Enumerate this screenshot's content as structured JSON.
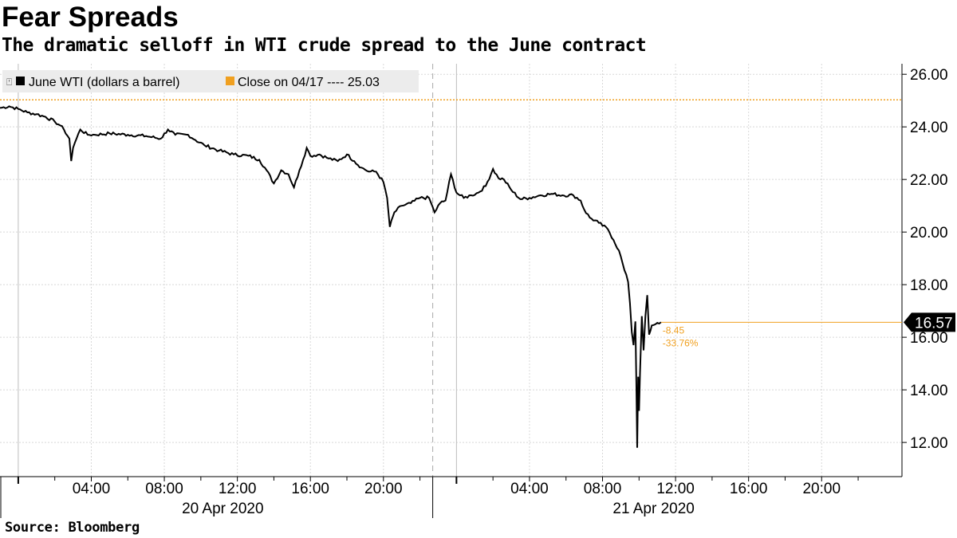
{
  "chart_data": {
    "type": "line",
    "title": "Fear Spreads",
    "subtitle": "The dramatic selloff in WTI crude spread to the June contract",
    "source": "Source: Bloomberg",
    "legend_position": "top-left",
    "grid": true,
    "colors": {
      "series": "#000000",
      "reference": "#f0a020",
      "last_badge": "#000000",
      "grid": "#d8d8d8"
    },
    "legend": {
      "series_label": "June WTI (dollars a barrel)",
      "reference_label": "Close on 04/17 ---- 25.03"
    },
    "ylim": [
      10.7,
      26.4
    ],
    "y_ticks": [
      {
        "v": 26,
        "label": "26.00"
      },
      {
        "v": 24,
        "label": "24.00"
      },
      {
        "v": 22,
        "label": "22.00"
      },
      {
        "v": 20,
        "label": "20.00"
      },
      {
        "v": 18,
        "label": "18.00"
      },
      {
        "v": 16,
        "label": "16.00"
      },
      {
        "v": 14,
        "label": "14.00"
      },
      {
        "v": 12,
        "label": "12.00"
      }
    ],
    "x_unit": "hours since 2020-04-20 00:00",
    "xlim": [
      -1,
      48.4
    ],
    "x_ticks": [
      {
        "v": 4,
        "label": "04:00"
      },
      {
        "v": 8,
        "label": "08:00"
      },
      {
        "v": 12,
        "label": "12:00"
      },
      {
        "v": 16,
        "label": "16:00"
      },
      {
        "v": 20,
        "label": "20:00"
      },
      {
        "v": 28,
        "label": "04:00"
      },
      {
        "v": 32,
        "label": "08:00"
      },
      {
        "v": 36,
        "label": "12:00"
      },
      {
        "v": 40,
        "label": "16:00"
      },
      {
        "v": 44,
        "label": "20:00"
      }
    ],
    "date_labels": [
      {
        "center": 11.2,
        "label": "20 Apr 2020"
      },
      {
        "center": 34.8,
        "label": "21 Apr 2020"
      }
    ],
    "day_separators": [
      22.7
    ],
    "reference_line": {
      "name": "Close on 04/17",
      "value": 25.03
    },
    "last_value": {
      "value": 16.57,
      "label": "16.57",
      "at_x": 35.2
    },
    "change_labels": [
      "-8.45",
      "-33.76%"
    ],
    "series": [
      {
        "name": "June WTI (dollars a barrel)",
        "points": [
          [
            -1.0,
            24.72
          ],
          [
            -0.5,
            24.78
          ],
          [
            0.0,
            24.68
          ],
          [
            0.5,
            24.55
          ],
          [
            1.0,
            24.48
          ],
          [
            1.5,
            24.38
          ],
          [
            2.0,
            24.2
          ],
          [
            2.3,
            24.05
          ],
          [
            2.5,
            23.9
          ],
          [
            2.8,
            23.55
          ],
          [
            2.9,
            22.7
          ],
          [
            3.0,
            23.2
          ],
          [
            3.1,
            23.4
          ],
          [
            3.4,
            23.9
          ],
          [
            3.8,
            23.7
          ],
          [
            4.2,
            23.7
          ],
          [
            5.0,
            23.75
          ],
          [
            6.0,
            23.7
          ],
          [
            7.0,
            23.65
          ],
          [
            7.8,
            23.55
          ],
          [
            8.2,
            23.9
          ],
          [
            8.6,
            23.7
          ],
          [
            9.3,
            23.7
          ],
          [
            9.7,
            23.5
          ],
          [
            10.2,
            23.3
          ],
          [
            11.0,
            23.1
          ],
          [
            11.8,
            22.95
          ],
          [
            12.6,
            22.9
          ],
          [
            13.2,
            22.75
          ],
          [
            13.6,
            22.35
          ],
          [
            14.0,
            21.85
          ],
          [
            14.4,
            22.35
          ],
          [
            14.8,
            22.2
          ],
          [
            15.1,
            21.7
          ],
          [
            15.4,
            22.35
          ],
          [
            15.6,
            22.75
          ],
          [
            15.8,
            23.2
          ],
          [
            16.0,
            22.9
          ],
          [
            16.5,
            22.95
          ],
          [
            17.0,
            22.8
          ],
          [
            17.5,
            22.7
          ],
          [
            18.0,
            22.95
          ],
          [
            18.4,
            22.7
          ],
          [
            18.8,
            22.45
          ],
          [
            19.2,
            22.3
          ],
          [
            19.6,
            22.3
          ],
          [
            20.0,
            21.9
          ],
          [
            20.2,
            21.3
          ],
          [
            20.35,
            20.2
          ],
          [
            20.6,
            20.75
          ],
          [
            21.0,
            21.0
          ],
          [
            21.5,
            21.1
          ],
          [
            22.0,
            21.3
          ],
          [
            22.5,
            21.3
          ],
          [
            22.8,
            20.75
          ],
          [
            23.1,
            21.1
          ],
          [
            23.4,
            21.2
          ],
          [
            23.7,
            22.2
          ],
          [
            24.0,
            21.5
          ],
          [
            24.4,
            21.3
          ],
          [
            24.8,
            21.4
          ],
          [
            25.2,
            21.5
          ],
          [
            25.6,
            21.75
          ],
          [
            26.0,
            22.4
          ],
          [
            26.3,
            22.05
          ],
          [
            26.6,
            22.0
          ],
          [
            27.0,
            21.6
          ],
          [
            27.5,
            21.25
          ],
          [
            28.0,
            21.3
          ],
          [
            28.6,
            21.4
          ],
          [
            29.2,
            21.45
          ],
          [
            29.8,
            21.4
          ],
          [
            30.4,
            21.4
          ],
          [
            30.8,
            21.2
          ],
          [
            31.0,
            20.85
          ],
          [
            31.3,
            20.55
          ],
          [
            31.8,
            20.35
          ],
          [
            32.3,
            20.1
          ],
          [
            32.6,
            19.7
          ],
          [
            32.9,
            19.3
          ],
          [
            33.2,
            18.55
          ],
          [
            33.4,
            18.1
          ],
          [
            33.5,
            17.3
          ],
          [
            33.6,
            16.2
          ],
          [
            33.7,
            15.7
          ],
          [
            33.8,
            16.6
          ],
          [
            33.85,
            14.3
          ],
          [
            33.9,
            11.8
          ],
          [
            33.95,
            14.5
          ],
          [
            34.0,
            13.2
          ],
          [
            34.05,
            14.6
          ],
          [
            34.15,
            16.8
          ],
          [
            34.25,
            15.5
          ],
          [
            34.35,
            16.8
          ],
          [
            34.45,
            17.6
          ],
          [
            34.55,
            16.1
          ],
          [
            34.7,
            16.45
          ],
          [
            35.0,
            16.55
          ],
          [
            35.2,
            16.57
          ]
        ]
      }
    ]
  }
}
